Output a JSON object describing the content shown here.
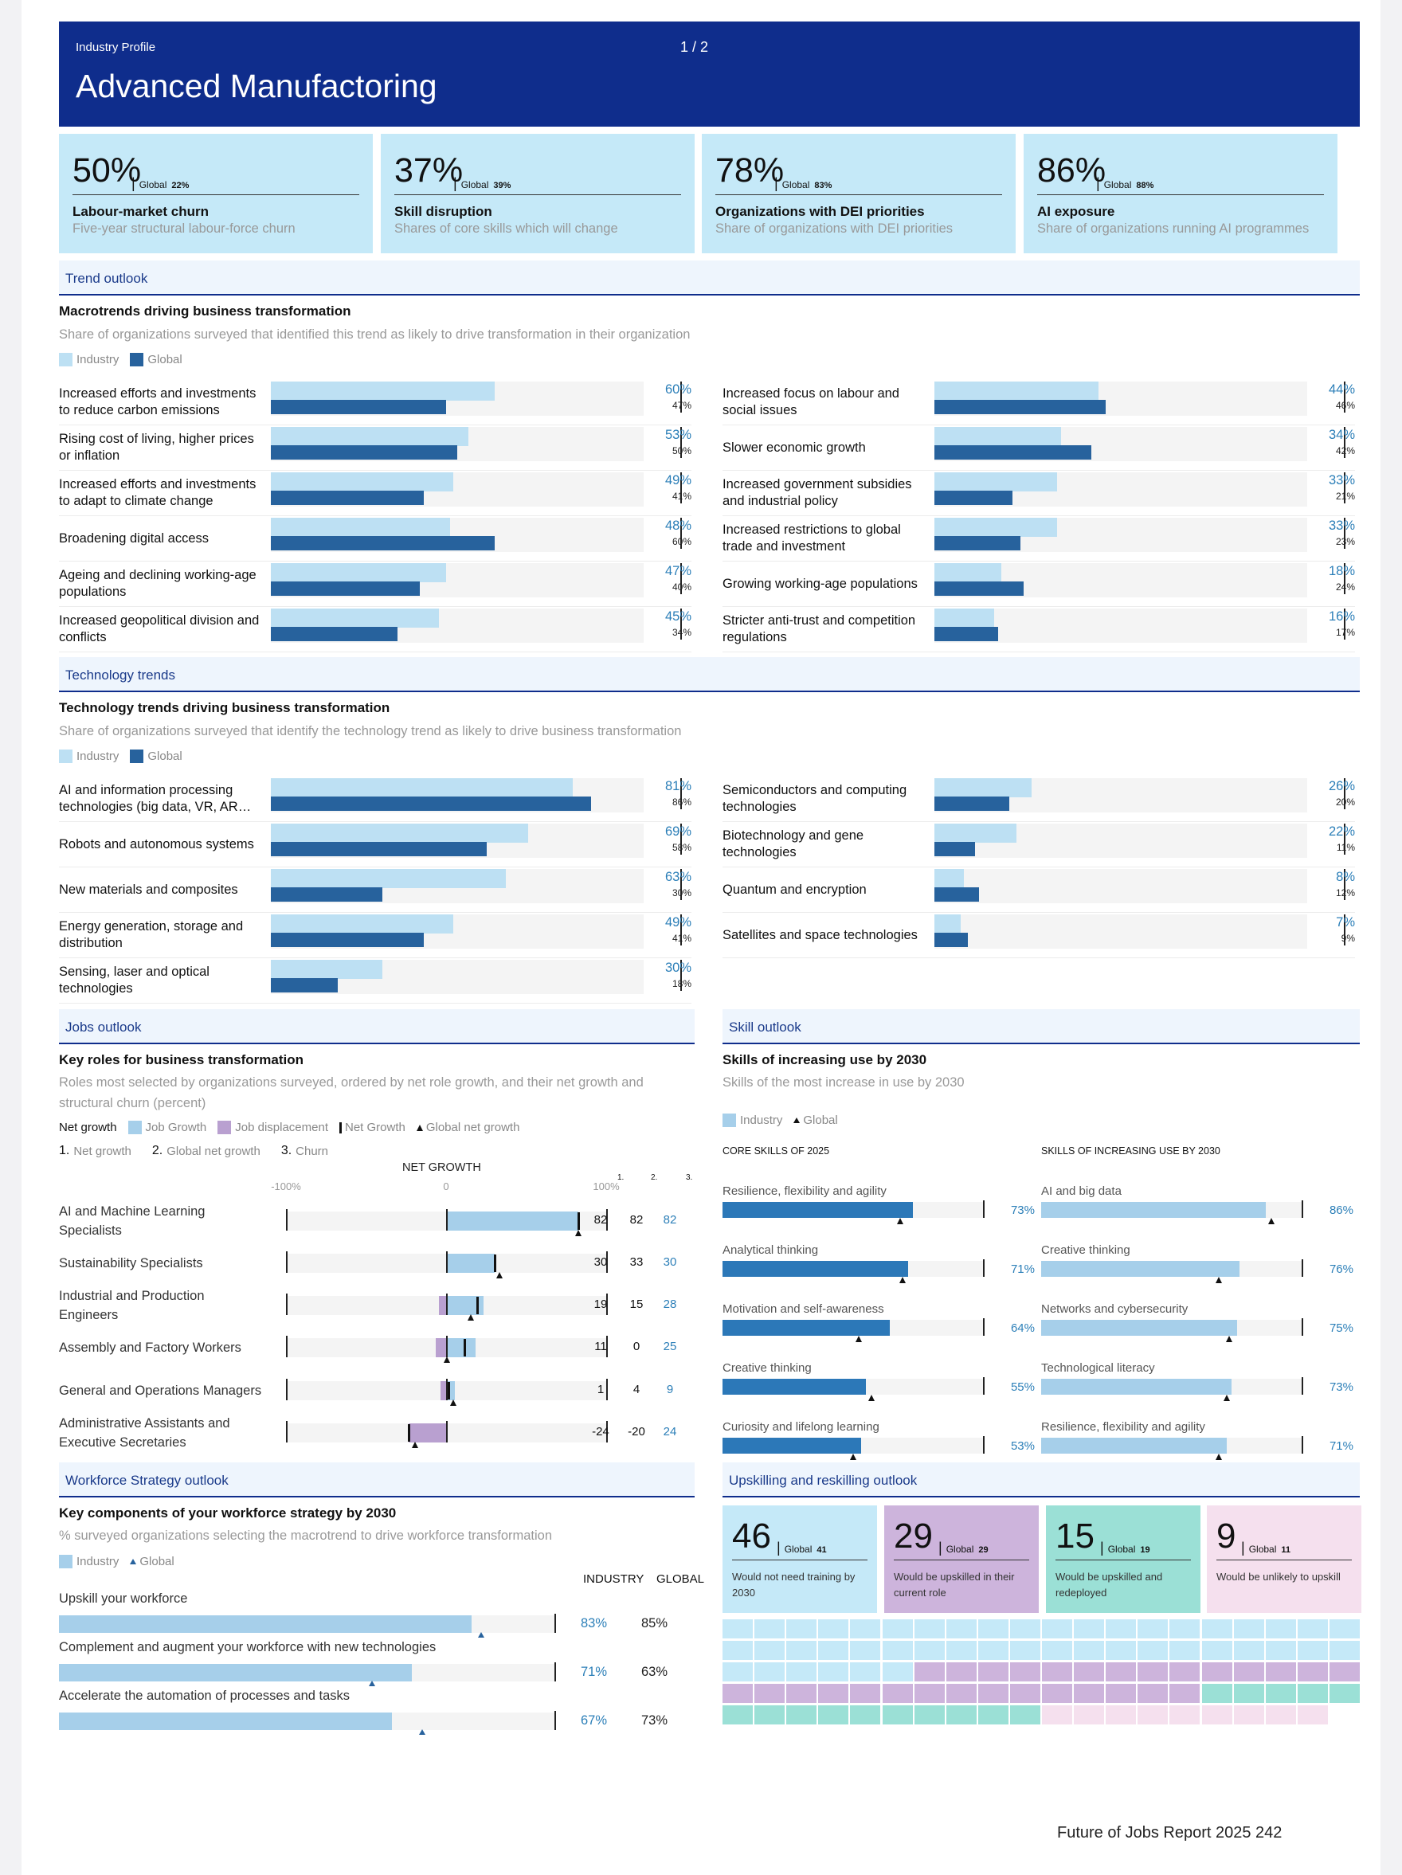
{
  "header": {
    "kicker": "Industry Profile",
    "page": "1  /  2",
    "title": "Advanced Manufactoring"
  },
  "kpis": [
    {
      "value": "50%",
      "global_label": "Global",
      "global": "22%",
      "name": "Labour-market churn",
      "desc": "Five-year structural labour-force churn"
    },
    {
      "value": "37%",
      "global_label": "Global",
      "global": "39%",
      "name": "Skill disruption",
      "desc": "Shares of core skills which will change"
    },
    {
      "value": "78%",
      "global_label": "Global",
      "global": "83%",
      "name": "Organizations with DEI priorities",
      "desc": "Share of organizations with DEI priorities"
    },
    {
      "value": "86%",
      "global_label": "Global",
      "global": "88%",
      "name": "AI exposure",
      "desc": "Share of organizations running AI programmes"
    }
  ],
  "trend": {
    "band": "Trend outlook",
    "title": "Macrotrends driving business transformation",
    "subtitle": "Share of organizations surveyed that identified this trend as likely to drive transformation in their organization",
    "legend_industry": "Industry",
    "legend_global": "Global",
    "left": [
      {
        "label": "Increased efforts and investments to reduce carbon emissions",
        "industry": 60,
        "global": 47,
        "industry_label": "60%",
        "global_label": "47%"
      },
      {
        "label": "Rising cost of living, higher prices or inflation",
        "industry": 53,
        "global": 50,
        "industry_label": "53%",
        "global_label": "50%"
      },
      {
        "label": "Increased efforts and investments to adapt to climate change",
        "industry": 49,
        "global": 41,
        "industry_label": "49%",
        "global_label": "41%"
      },
      {
        "label": "Broadening digital access",
        "industry": 48,
        "global": 60,
        "industry_label": "48%",
        "global_label": "60%"
      },
      {
        "label": "Ageing and declining working-age populations",
        "industry": 47,
        "global": 40,
        "industry_label": "47%",
        "global_label": "40%"
      },
      {
        "label": "Increased geopolitical division and conflicts",
        "industry": 45,
        "global": 34,
        "industry_label": "45%",
        "global_label": "34%"
      }
    ],
    "right": [
      {
        "label": "Increased focus on labour and social issues",
        "industry": 44,
        "global": 46,
        "industry_label": "44%",
        "global_label": "46%"
      },
      {
        "label": "Slower economic growth",
        "industry": 34,
        "global": 42,
        "industry_label": "34%",
        "global_label": "42%"
      },
      {
        "label": "Increased government subsidies and industrial policy",
        "industry": 33,
        "global": 21,
        "industry_label": "33%",
        "global_label": "21%"
      },
      {
        "label": "Increased restrictions to global trade and investment",
        "industry": 33,
        "global": 23,
        "industry_label": "33%",
        "global_label": "23%"
      },
      {
        "label": "Growing working-age populations",
        "industry": 18,
        "global": 24,
        "industry_label": "18%",
        "global_label": "24%"
      },
      {
        "label": "Stricter anti-trust and competition regulations",
        "industry": 16,
        "global": 17,
        "industry_label": "16%",
        "global_label": "17%"
      }
    ]
  },
  "tech": {
    "band": "Technology trends",
    "title": "Technology trends driving business transformation",
    "subtitle": "Share of organizations surveyed that identify the technology trend as likely to drive business transformation",
    "legend_industry": "Industry",
    "legend_global": "Global",
    "left": [
      {
        "label": "AI and information processing technologies (big data, VR, AR etc.)",
        "industry": 81,
        "global": 86,
        "industry_label": "81%",
        "global_label": "86%"
      },
      {
        "label": "Robots and autonomous systems",
        "industry": 69,
        "global": 58,
        "industry_label": "69%",
        "global_label": "58%"
      },
      {
        "label": "New materials and composites",
        "industry": 63,
        "global": 30,
        "industry_label": "63%",
        "global_label": "30%"
      },
      {
        "label": "Energy generation, storage and distribution",
        "industry": 49,
        "global": 41,
        "industry_label": "49%",
        "global_label": "41%"
      },
      {
        "label": "Sensing, laser and optical technologies",
        "industry": 30,
        "global": 18,
        "industry_label": "30%",
        "global_label": "18%"
      }
    ],
    "right": [
      {
        "label": "Semiconductors and computing technologies",
        "industry": 26,
        "global": 20,
        "industry_label": "26%",
        "global_label": "20%"
      },
      {
        "label": "Biotechnology and gene technologies",
        "industry": 22,
        "global": 11,
        "industry_label": "22%",
        "global_label": "11%"
      },
      {
        "label": "Quantum and encryption",
        "industry": 8,
        "global": 12,
        "industry_label": "8%",
        "global_label": "12%"
      },
      {
        "label": "Satellites and space technologies",
        "industry": 7,
        "global": 9,
        "industry_label": "7%",
        "global_label": "9%"
      }
    ]
  },
  "jobs": {
    "band": "Jobs outlook",
    "title": "Key roles for business transformation",
    "subtitle": "Roles most selected by organizations surveyed, ordered by net role growth, and their net growth and structural churn (percent)",
    "legend": {
      "net_growth": "Net growth",
      "job_growth": "Job Growth",
      "job_displacement": "Job displacement",
      "net_growth_mark": "Net Growth",
      "global_net_growth": "Global net growth"
    },
    "keys": [
      {
        "num": "1.",
        "label": "Net growth"
      },
      {
        "num": "2.",
        "label": "Global net growth"
      },
      {
        "num": "3.",
        "label": "Churn"
      }
    ],
    "axis_title": "NET GROWTH",
    "ticks": [
      "-100%",
      "0",
      "100%"
    ],
    "col_heads": [
      "1.",
      "2.",
      "3."
    ],
    "rows": [
      {
        "label": "AI and Machine Learning Specialists",
        "growth": 82,
        "displacement": 0,
        "net": 82,
        "global_net": 82,
        "net_label": "82",
        "global_label": "82",
        "churn_label": "82"
      },
      {
        "label": "Sustainability Specialists",
        "growth": 30,
        "displacement": 0,
        "net": 30,
        "global_net": 33,
        "net_label": "30",
        "global_label": "33",
        "churn_label": "30"
      },
      {
        "label": "Industrial and Production Engineers",
        "growth": 23,
        "displacement": 5,
        "net": 19,
        "global_net": 15,
        "net_label": "19",
        "global_label": "15",
        "churn_label": "28"
      },
      {
        "label": "Assembly and Factory Workers",
        "growth": 18,
        "displacement": 7,
        "net": 11,
        "global_net": 0,
        "net_label": "11",
        "global_label": "0",
        "churn_label": "25"
      },
      {
        "label": "General and Operations Managers",
        "growth": 5,
        "displacement": 4,
        "net": 1,
        "global_net": 4,
        "net_label": "1",
        "global_label": "4",
        "churn_label": "9"
      },
      {
        "label": "Administrative Assistants and Executive Secretaries",
        "growth": 0,
        "displacement": 24,
        "net": -24,
        "global_net": -20,
        "net_label": "-24",
        "global_label": "-20",
        "churn_label": "24"
      }
    ]
  },
  "skills": {
    "band": "Skill outlook",
    "title": "Skills of increasing use by 2030",
    "subtitle": "Skills of the most increase in use by 2030",
    "legend_industry": "Industry",
    "legend_global": "Global",
    "core_head": "CORE SKILLS OF 2025",
    "incr_head": "SKILLS OF INCREASING USE BY 2030",
    "core": [
      {
        "label": "Resilience, flexibility and agility",
        "value": 73,
        "global": 68,
        "pct": "73%"
      },
      {
        "label": "Analytical thinking",
        "value": 71,
        "global": 69,
        "pct": "71%"
      },
      {
        "label": "Motivation and self-awareness",
        "value": 64,
        "global": 52,
        "pct": "64%"
      },
      {
        "label": "Creative thinking",
        "value": 55,
        "global": 57,
        "pct": "55%"
      },
      {
        "label": "Curiosity and lifelong learning",
        "value": 53,
        "global": 50,
        "pct": "53%"
      }
    ],
    "increasing": [
      {
        "label": "AI and big data",
        "value": 86,
        "global": 88,
        "pct": "86%"
      },
      {
        "label": "Creative thinking",
        "value": 76,
        "global": 68,
        "pct": "76%"
      },
      {
        "label": "Networks and cybersecurity",
        "value": 75,
        "global": 72,
        "pct": "75%"
      },
      {
        "label": "Technological literacy",
        "value": 73,
        "global": 71,
        "pct": "73%"
      },
      {
        "label": "Resilience, flexibility and agility",
        "value": 71,
        "global": 68,
        "pct": "71%"
      }
    ]
  },
  "workforce": {
    "band": "Workforce Strategy outlook",
    "title": "Key components of your workforce strategy by 2030",
    "subtitle": "% surveyed organizations selecting the macrotrend to drive workforce transformation",
    "legend_industry": "Industry",
    "legend_global": "Global",
    "col_industry": "INDUSTRY",
    "col_global": "GLOBAL",
    "rows": [
      {
        "label": "Upskill your workforce",
        "industry": 83,
        "global": 85,
        "industry_label": "83%",
        "global_label": "85%"
      },
      {
        "label": "Complement and augment your workforce with new technologies",
        "industry": 71,
        "global": 63,
        "industry_label": "71%",
        "global_label": "63%"
      },
      {
        "label": "Accelerate the automation of processes and tasks",
        "industry": 67,
        "global": 73,
        "industry_label": "67%",
        "global_label": "73%"
      }
    ]
  },
  "upskill": {
    "band": "Upskilling and reskilling outlook",
    "boxes": [
      {
        "value": "46",
        "count": 46,
        "global_label": "Global",
        "global": "41",
        "desc": "Would not need training by 2030",
        "color": "#c5e9f8"
      },
      {
        "value": "29",
        "count": 29,
        "global_label": "Global",
        "global": "29",
        "desc": "Would be upskilled in their current role",
        "color": "#cdb4dc"
      },
      {
        "value": "15",
        "count": 15,
        "global_label": "Global",
        "global": "19",
        "desc": "Would be upskilled and redeployed",
        "color": "#9be0d6"
      },
      {
        "value": "9",
        "count": 9,
        "global_label": "Global",
        "global": "11",
        "desc": "Would be unlikely to upskill",
        "color": "#f5e0ee"
      }
    ]
  },
  "footer": {
    "text": "Future of Jobs Report 2025   242"
  }
}
